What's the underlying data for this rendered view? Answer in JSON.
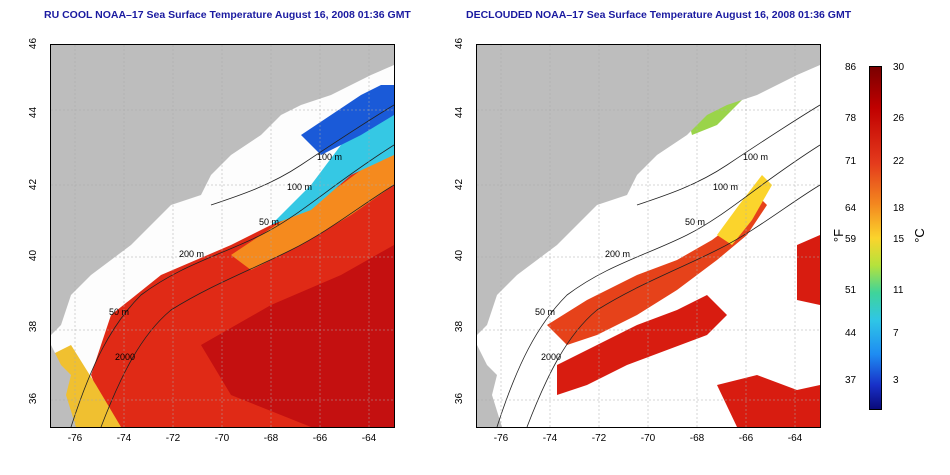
{
  "panels": [
    {
      "id": "left",
      "title": "RU COOL NOAA–17 Sea Surface Temperature August 16, 2008 01:36 GMT"
    },
    {
      "id": "right",
      "title": "DECLOUDED NOAA–17 Sea Surface Temperature August 16, 2008 01:36 GMT"
    }
  ],
  "axes": {
    "lon_ticks": [
      "-76",
      "-74",
      "-72",
      "-70",
      "-68",
      "-66",
      "-64"
    ],
    "lat_ticks": [
      "46",
      "44",
      "42",
      "40",
      "38",
      "36"
    ]
  },
  "contour_labels": {
    "left": [
      "100 m",
      "100 m",
      "50 m",
      "200 m",
      "50 m",
      "2000"
    ],
    "right": [
      "100 m",
      "100 m",
      "50 m",
      "200 m",
      "50 m",
      "2000"
    ]
  },
  "colorbar": {
    "fahrenheit_ticks": [
      "86",
      "78",
      "71",
      "64",
      "59",
      "51",
      "44",
      "37"
    ],
    "celsius_ticks": [
      "30",
      "26",
      "22",
      "18",
      "15",
      "11",
      "7",
      "3"
    ],
    "f_unit": "°F",
    "c_unit": "°C"
  },
  "colors": {
    "land": "#bdbdbd",
    "cloud": "#ffffff",
    "warm": "#e02a16",
    "hot": "#b80d0d",
    "mid": "#f58a1e",
    "cool": "#35c8e4",
    "cold": "#1a5ad8",
    "title": "#1a1aa0"
  }
}
